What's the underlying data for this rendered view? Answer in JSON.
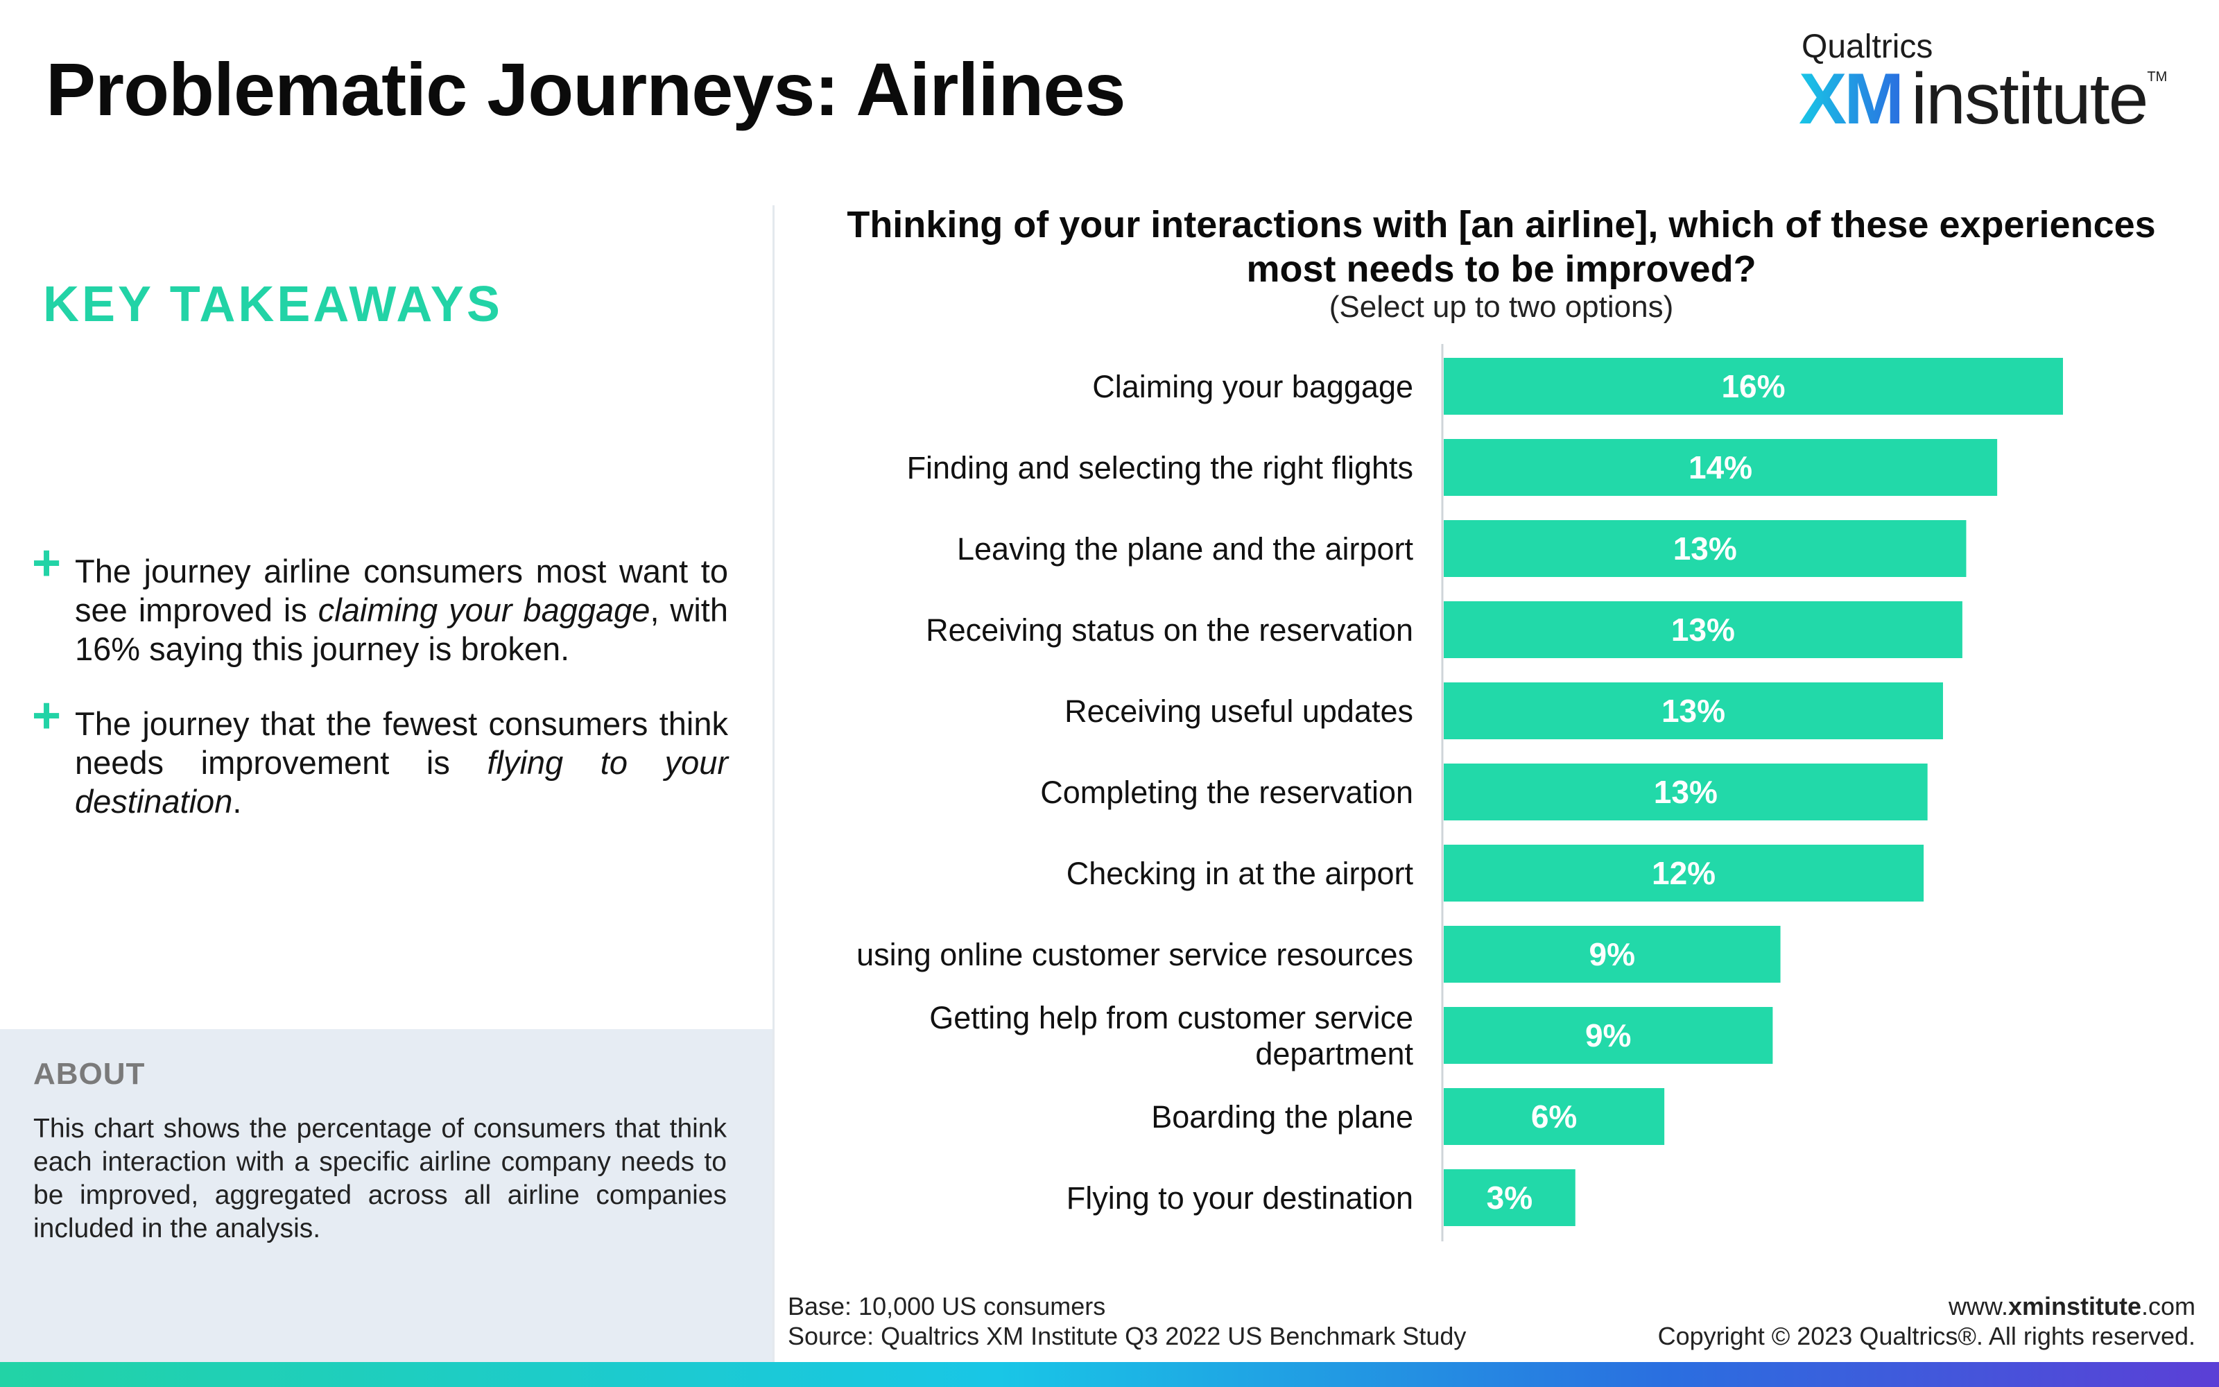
{
  "page": {
    "title": "Problematic Journeys: Airlines"
  },
  "logo": {
    "top_text": "Qualtrics",
    "brand_text": "XM",
    "brand_suffix": "institute",
    "trademark": "TM"
  },
  "takeaways": {
    "heading": "KEY TAKEAWAYS",
    "items": [
      {
        "before": "The journey airline consumers most want to see improved is ",
        "emphasis": "claiming your baggage",
        "after": ", with 16% saying this journey is broken."
      },
      {
        "before": "The journey that the fewest consumers think needs improvement is ",
        "emphasis": "flying to your destination",
        "after": "."
      }
    ]
  },
  "about": {
    "heading": "ABOUT",
    "body": "This chart shows the percentage of consumers that think each interaction with a specific airline company needs to be improved, aggregated across all airline companies included in the analysis."
  },
  "chart_data": {
    "type": "bar",
    "orientation": "horizontal",
    "title": "Thinking of your interactions with [an airline], which of these experiences most needs to be improved?",
    "subtitle": "(Select up to two options)",
    "categories": [
      [
        "Claiming your baggage"
      ],
      [
        "Finding and selecting the right flights"
      ],
      [
        "Leaving the plane and the airport"
      ],
      [
        "Receiving status on the reservation"
      ],
      [
        "Receiving useful updates"
      ],
      [
        "Completing the reservation"
      ],
      [
        "Checking in at the airport"
      ],
      [
        "using online customer service resources"
      ],
      [
        "Getting help from customer service",
        "department"
      ],
      [
        "Boarding the plane"
      ],
      [
        "Flying to your destination"
      ]
    ],
    "values": [
      16.0,
      14.3,
      13.5,
      13.4,
      12.9,
      12.5,
      12.4,
      8.7,
      8.5,
      5.7,
      3.4
    ],
    "data_labels": [
      "16%",
      "14%",
      "13%",
      "13%",
      "13%",
      "13%",
      "12%",
      "9%",
      "9%",
      "6%",
      "3%"
    ],
    "xlim": [
      0,
      16
    ],
    "bar_color": "#22d9a9",
    "label_color": "#ffffff",
    "grid": false,
    "legend": "none"
  },
  "footer": {
    "base": "Base: 10,000 US consumers",
    "source": "Source: Qualtrics XM Institute Q3 2022 US Benchmark Study",
    "site_prefix": "www.",
    "site_bold": "xminstitute",
    "site_suffix": ".com",
    "copyright": "Copyright © 2023 Qualtrics®. All rights reserved."
  }
}
